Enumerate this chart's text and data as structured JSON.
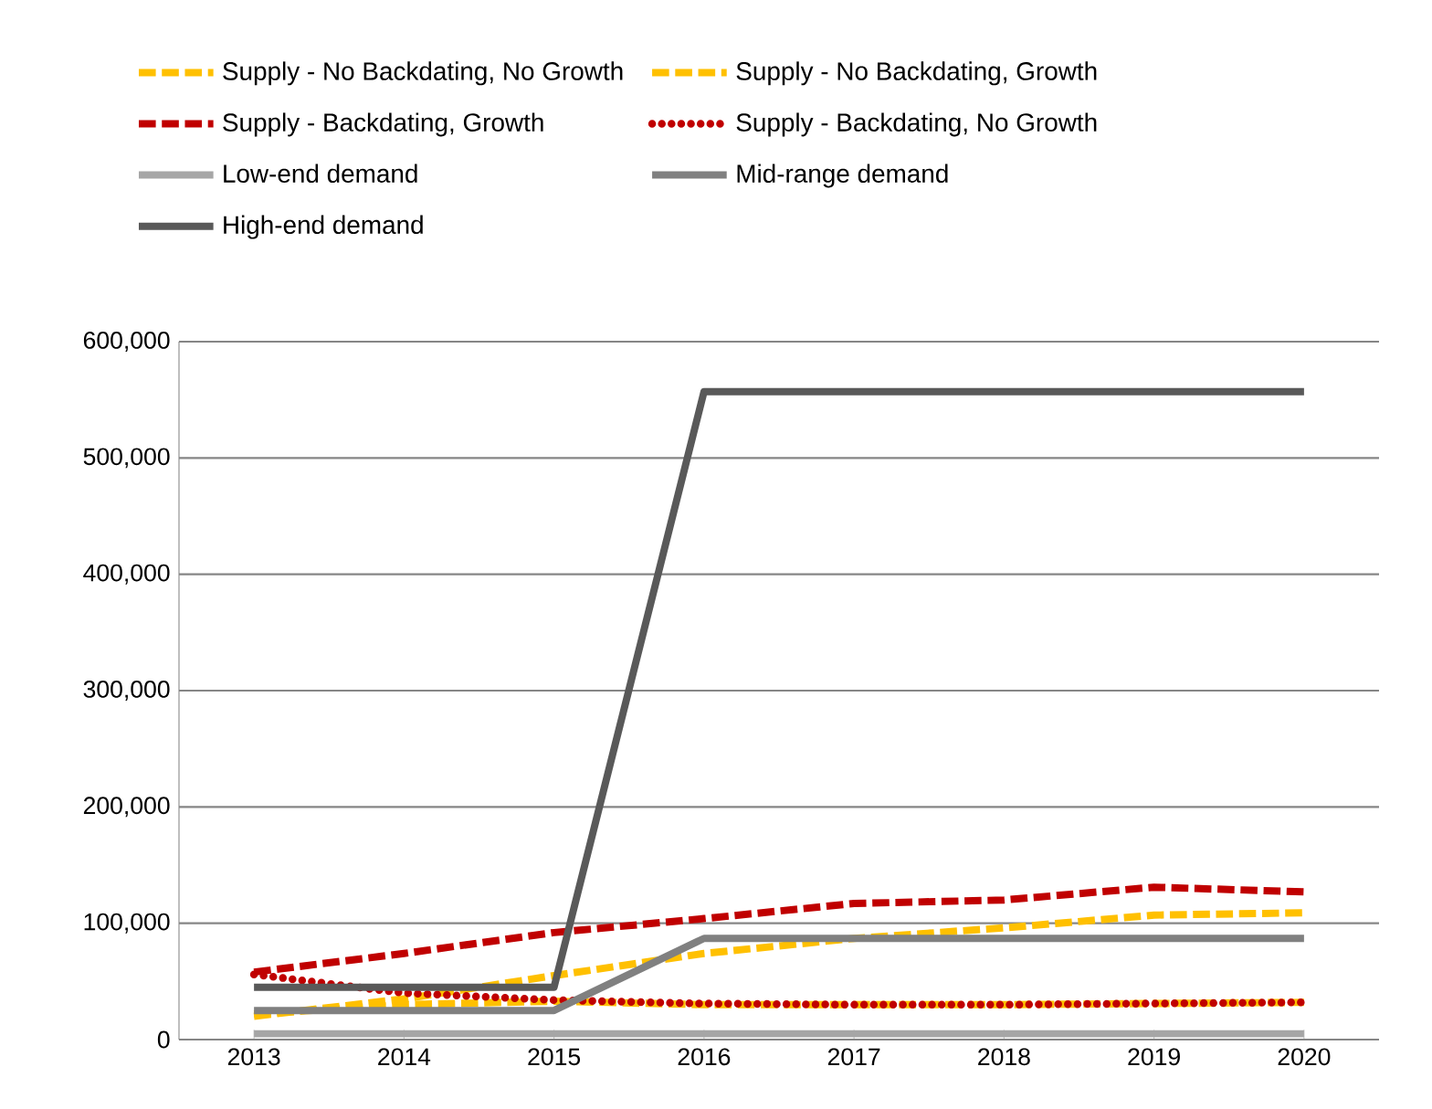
{
  "chart_data": {
    "type": "line",
    "categories": [
      "2013",
      "2014",
      "2015",
      "2016",
      "2017",
      "2018",
      "2019",
      "2020"
    ],
    "series": [
      {
        "name": "Supply - No Backdating, No Growth",
        "color": "#ffc000",
        "line_style": "dashed",
        "values": [
          22000,
          30000,
          33000,
          30000,
          30000,
          30000,
          31000,
          32000
        ]
      },
      {
        "name": "Supply - No Backdating, Growth",
        "color": "#ffc000",
        "line_style": "dashed",
        "values": [
          20000,
          35000,
          55000,
          74000,
          87000,
          96000,
          107000,
          109000
        ]
      },
      {
        "name": "Supply - Backdating, Growth",
        "color": "#c00000",
        "line_style": "dashed",
        "values": [
          58000,
          74000,
          92000,
          104000,
          117000,
          120000,
          131000,
          127000
        ]
      },
      {
        "name": "Supply - Backdating, No Growth",
        "color": "#c00000",
        "line_style": "dotted",
        "values": [
          56000,
          40000,
          34000,
          31000,
          30000,
          30000,
          31000,
          32000
        ]
      },
      {
        "name": "Low-end demand",
        "color": "#a6a6a6",
        "line_style": "solid",
        "values": [
          5000,
          5000,
          5000,
          5000,
          5000,
          5000,
          5000,
          5000
        ]
      },
      {
        "name": "Mid-range demand",
        "color": "#808080",
        "line_style": "solid",
        "values": [
          25000,
          25000,
          25000,
          87000,
          87000,
          87000,
          87000,
          87000
        ]
      },
      {
        "name": "High-end demand",
        "color": "#595959",
        "line_style": "solid",
        "values": [
          45000,
          45000,
          45000,
          557000,
          557000,
          557000,
          557000,
          557000
        ]
      }
    ],
    "ylim": [
      0,
      600000
    ],
    "yticks": [
      {
        "value": 0,
        "label": "0"
      },
      {
        "value": 100000,
        "label": "100,000"
      },
      {
        "value": 200000,
        "label": "200,000"
      },
      {
        "value": 300000,
        "label": "300,000"
      },
      {
        "value": 400000,
        "label": "400,000"
      },
      {
        "value": 500000,
        "label": "500,000"
      },
      {
        "value": 600000,
        "label": "600,000"
      }
    ],
    "grid": "y",
    "legend": "top",
    "marker": "none"
  }
}
